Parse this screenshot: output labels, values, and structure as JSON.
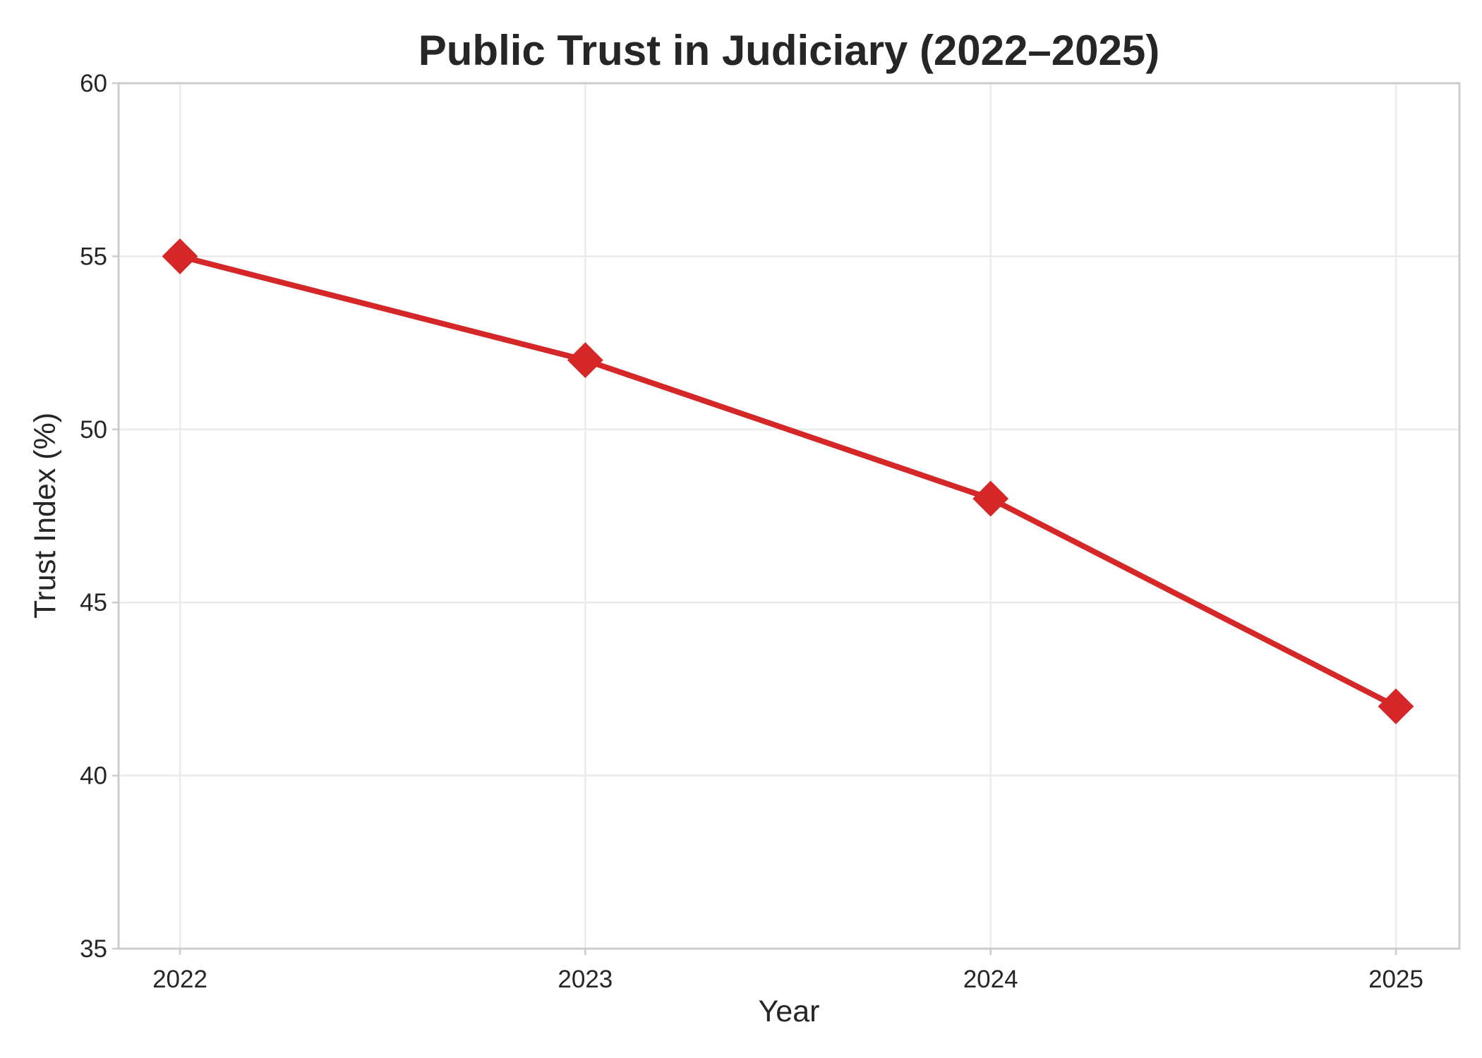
{
  "chart_data": {
    "type": "line",
    "title": "Public Trust in Judiciary (2022–2025)",
    "xlabel": "Year",
    "ylabel": "Trust Index (%)",
    "categories": [
      "2022",
      "2023",
      "2024",
      "2025"
    ],
    "x": [
      2022,
      2023,
      2024,
      2025
    ],
    "series": [
      {
        "values": [
          55,
          52,
          48,
          42
        ],
        "color": "#d62728",
        "marker": "diamond"
      }
    ],
    "ylim": [
      35,
      60
    ],
    "yticks": [
      35,
      40,
      45,
      50,
      55,
      60
    ],
    "grid": true,
    "legend": "none"
  }
}
